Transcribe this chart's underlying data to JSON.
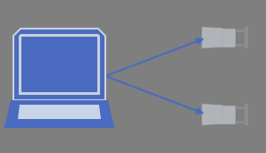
{
  "bg_color": "#7f7f7f",
  "laptop_body_color": "#4a6bbf",
  "laptop_outline_color": "#c8d0e0",
  "laptop_screen_border_color": "#c8d4e8",
  "keyboard_color": "#c8d4e8",
  "speaker_body_color": "#b0b4b8",
  "speaker_cone_color": "#b0b4b8",
  "speaker_bg_color": "#989c9e",
  "arrow_color": "#4a6bbf",
  "fig_w": 2.98,
  "fig_h": 1.71,
  "dpi": 100
}
